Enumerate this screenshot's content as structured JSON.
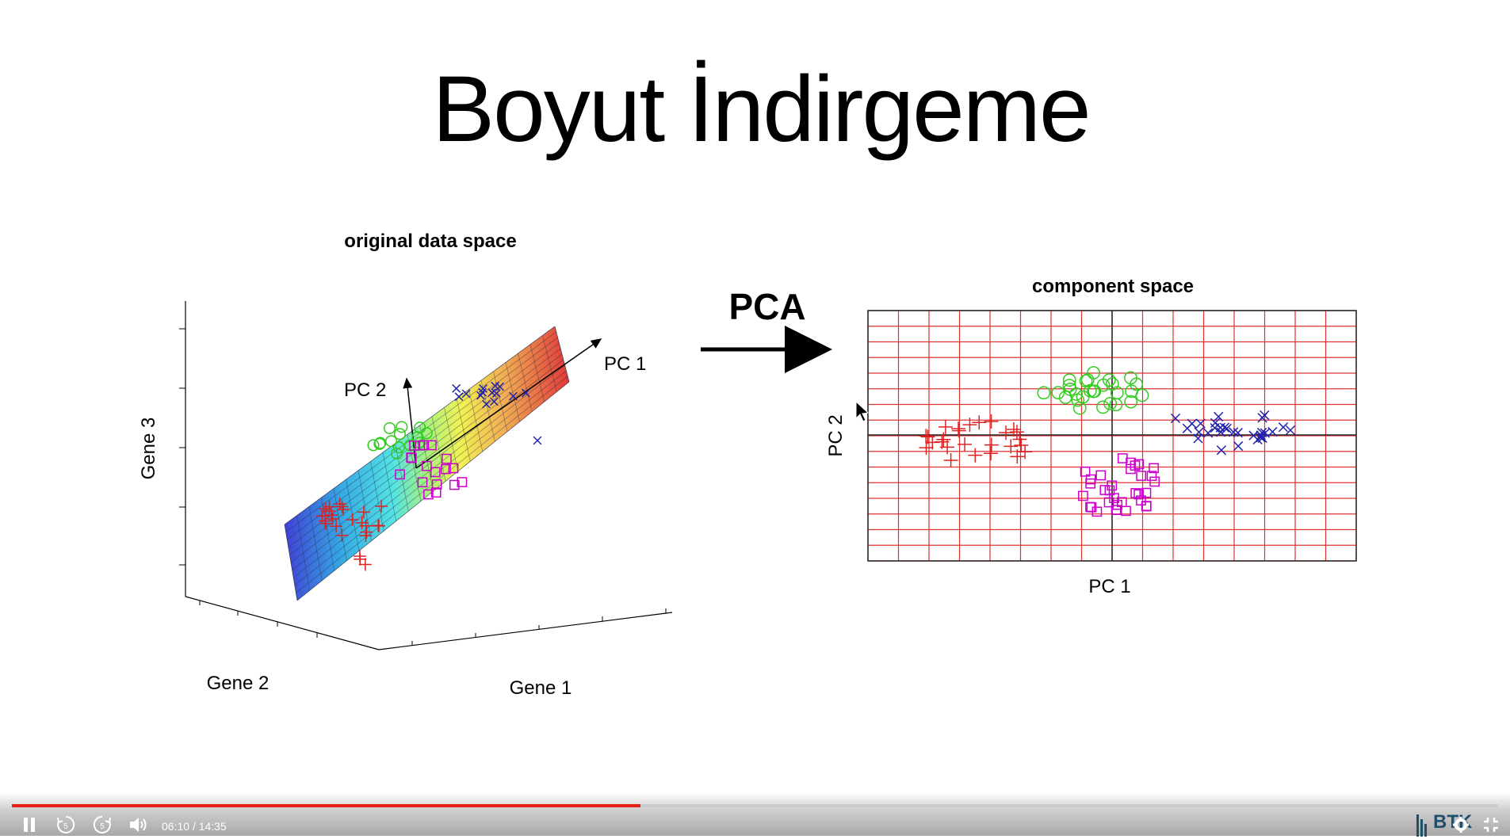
{
  "slide": {
    "title": "Boyut İndirgeme",
    "left_plot": {
      "title": "original data space",
      "axis_x": "Gene 1",
      "axis_y": "Gene 2",
      "axis_z": "Gene 3",
      "pc1_label": "PC 1",
      "pc2_label": "PC 2"
    },
    "arrow_label": "PCA",
    "right_plot": {
      "title": "component space",
      "xlabel": "PC 1",
      "ylabel": "PC 2"
    }
  },
  "colors": {
    "red": "#dd2222",
    "green": "#33cc22",
    "magenta": "#cc00cc",
    "blue": "#2222aa",
    "grid": "#dd3333",
    "progress": "#e62117"
  },
  "player": {
    "current_time": "06:10",
    "duration": "14:35",
    "time_text": "06:10 / 14:35",
    "progress": 0.4228,
    "skip_back_label": "5",
    "skip_forward_label": "5",
    "logo_text": "BTK"
  }
}
